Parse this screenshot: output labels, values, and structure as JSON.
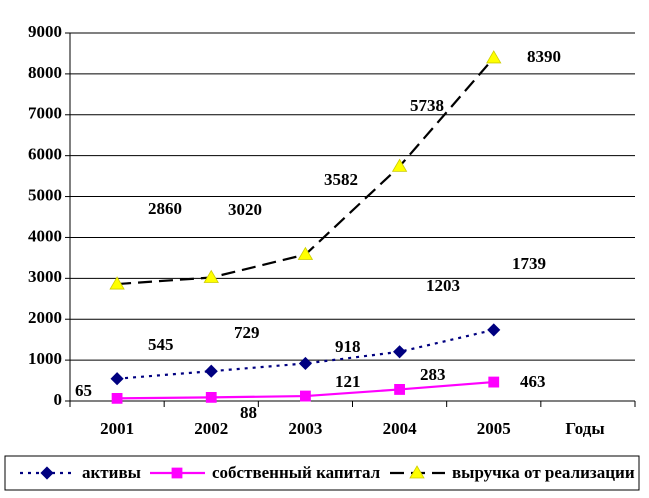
{
  "chart_data": {
    "type": "line",
    "categories": [
      "2001",
      "2002",
      "2003",
      "2004",
      "2005"
    ],
    "x_label": "Годы",
    "series": [
      {
        "name": "активы",
        "color": "#000080",
        "values": [
          545,
          729,
          918,
          1203,
          1739
        ]
      },
      {
        "name": "собственный капитал",
        "color": "#ff00ff",
        "values": [
          65,
          88,
          121,
          283,
          463
        ]
      },
      {
        "name": "выручка от реализации",
        "color": "#000000",
        "marker_color": "#ffff00",
        "values": [
          2860,
          3020,
          3582,
          5738,
          8390
        ]
      }
    ],
    "ylim": [
      0,
      9000
    ],
    "yticks": [
      0,
      1000,
      2000,
      3000,
      4000,
      5000,
      6000,
      7000,
      8000,
      9000
    ],
    "grid": true,
    "legend": "bottom"
  }
}
